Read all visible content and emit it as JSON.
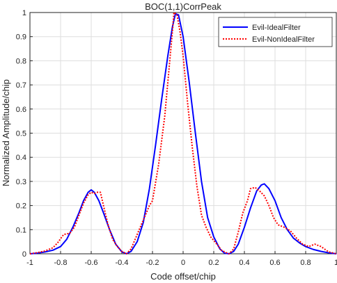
{
  "chart_data": {
    "type": "line",
    "title": "BOC(1,1)CorrPeak",
    "xlabel": "Code offset/chip",
    "ylabel": "Normalized Amplitude/chip",
    "xlim": [
      -1,
      1
    ],
    "ylim": [
      0,
      1
    ],
    "xticks": [
      -1,
      -0.8,
      -0.6,
      -0.4,
      -0.2,
      0,
      0.2,
      0.4,
      0.6,
      0.8,
      1
    ],
    "yticks": [
      0,
      0.1,
      0.2,
      0.3,
      0.4,
      0.5,
      0.6,
      0.7,
      0.8,
      0.9,
      1
    ],
    "xtick_labels": [
      "-1",
      "-0.8",
      "-0.6",
      "-0.4",
      "-0.2",
      "0",
      "0.2",
      "0.4",
      "0.6",
      "0.8",
      "1"
    ],
    "ytick_labels": [
      "0",
      "0.1",
      "0.2",
      "0.3",
      "0.4",
      "0.5",
      "0.6",
      "0.7",
      "0.8",
      "0.9",
      "1"
    ],
    "grid": true,
    "legend_position": "top-right",
    "series": [
      {
        "name": "Evil-IdealFilter",
        "color": "#0000ff",
        "style": "solid",
        "points": [
          [
            -1.0,
            0.0
          ],
          [
            -0.95,
            0.003
          ],
          [
            -0.9,
            0.008
          ],
          [
            -0.85,
            0.015
          ],
          [
            -0.8,
            0.03
          ],
          [
            -0.76,
            0.06
          ],
          [
            -0.72,
            0.11
          ],
          [
            -0.68,
            0.17
          ],
          [
            -0.65,
            0.22
          ],
          [
            -0.62,
            0.255
          ],
          [
            -0.6,
            0.265
          ],
          [
            -0.58,
            0.255
          ],
          [
            -0.55,
            0.22
          ],
          [
            -0.52,
            0.17
          ],
          [
            -0.48,
            0.1
          ],
          [
            -0.44,
            0.04
          ],
          [
            -0.4,
            0.008
          ],
          [
            -0.37,
            0.0
          ],
          [
            -0.34,
            0.01
          ],
          [
            -0.3,
            0.05
          ],
          [
            -0.26,
            0.13
          ],
          [
            -0.22,
            0.27
          ],
          [
            -0.18,
            0.45
          ],
          [
            -0.14,
            0.64
          ],
          [
            -0.1,
            0.82
          ],
          [
            -0.07,
            0.94
          ],
          [
            -0.05,
            0.995
          ],
          [
            -0.03,
            0.99
          ],
          [
            0.0,
            0.9
          ],
          [
            0.04,
            0.71
          ],
          [
            0.08,
            0.5
          ],
          [
            0.12,
            0.3
          ],
          [
            0.16,
            0.15
          ],
          [
            0.2,
            0.07
          ],
          [
            0.24,
            0.02
          ],
          [
            0.27,
            0.003
          ],
          [
            0.3,
            0.0
          ],
          [
            0.33,
            0.01
          ],
          [
            0.36,
            0.04
          ],
          [
            0.4,
            0.11
          ],
          [
            0.44,
            0.19
          ],
          [
            0.48,
            0.26
          ],
          [
            0.51,
            0.285
          ],
          [
            0.53,
            0.29
          ],
          [
            0.56,
            0.27
          ],
          [
            0.6,
            0.22
          ],
          [
            0.64,
            0.15
          ],
          [
            0.68,
            0.1
          ],
          [
            0.72,
            0.065
          ],
          [
            0.76,
            0.045
          ],
          [
            0.8,
            0.03
          ],
          [
            0.85,
            0.018
          ],
          [
            0.9,
            0.01
          ],
          [
            0.95,
            0.004
          ],
          [
            1.0,
            0.0
          ]
        ]
      },
      {
        "name": "Evil-NonIdealFilter",
        "color": "#ff0000",
        "style": "dotted",
        "points": [
          [
            -1.0,
            0.0
          ],
          [
            -0.95,
            0.005
          ],
          [
            -0.9,
            0.012
          ],
          [
            -0.85,
            0.025
          ],
          [
            -0.82,
            0.045
          ],
          [
            -0.78,
            0.08
          ],
          [
            -0.74,
            0.085
          ],
          [
            -0.71,
            0.11
          ],
          [
            -0.68,
            0.16
          ],
          [
            -0.65,
            0.21
          ],
          [
            -0.62,
            0.245
          ],
          [
            -0.6,
            0.255
          ],
          [
            -0.58,
            0.25
          ],
          [
            -0.56,
            0.255
          ],
          [
            -0.54,
            0.255
          ],
          [
            -0.52,
            0.2
          ],
          [
            -0.49,
            0.12
          ],
          [
            -0.46,
            0.06
          ],
          [
            -0.43,
            0.03
          ],
          [
            -0.4,
            0.01
          ],
          [
            -0.37,
            0.0
          ],
          [
            -0.34,
            0.02
          ],
          [
            -0.3,
            0.08
          ],
          [
            -0.26,
            0.14
          ],
          [
            -0.22,
            0.2
          ],
          [
            -0.2,
            0.22
          ],
          [
            -0.16,
            0.37
          ],
          [
            -0.12,
            0.57
          ],
          [
            -0.09,
            0.78
          ],
          [
            -0.07,
            0.92
          ],
          [
            -0.06,
            1.0
          ],
          [
            -0.04,
            0.99
          ],
          [
            -0.02,
            0.92
          ],
          [
            0.0,
            0.82
          ],
          [
            0.03,
            0.62
          ],
          [
            0.06,
            0.44
          ],
          [
            0.09,
            0.28
          ],
          [
            0.12,
            0.16
          ],
          [
            0.15,
            0.11
          ],
          [
            0.18,
            0.07
          ],
          [
            0.22,
            0.04
          ],
          [
            0.25,
            0.015
          ],
          [
            0.28,
            0.005
          ],
          [
            0.3,
            0.0
          ],
          [
            0.33,
            0.02
          ],
          [
            0.36,
            0.09
          ],
          [
            0.39,
            0.17
          ],
          [
            0.42,
            0.22
          ],
          [
            0.44,
            0.27
          ],
          [
            0.47,
            0.275
          ],
          [
            0.5,
            0.26
          ],
          [
            0.53,
            0.24
          ],
          [
            0.56,
            0.2
          ],
          [
            0.59,
            0.15
          ],
          [
            0.62,
            0.12
          ],
          [
            0.66,
            0.11
          ],
          [
            0.7,
            0.095
          ],
          [
            0.74,
            0.065
          ],
          [
            0.78,
            0.04
          ],
          [
            0.82,
            0.03
          ],
          [
            0.86,
            0.04
          ],
          [
            0.9,
            0.03
          ],
          [
            0.95,
            0.008
          ],
          [
            1.0,
            0.0
          ]
        ]
      }
    ]
  }
}
